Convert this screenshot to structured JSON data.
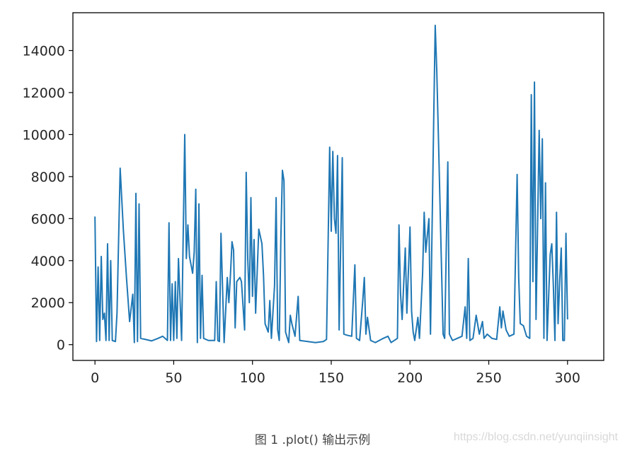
{
  "chart_data": {
    "type": "line",
    "title": "",
    "xlabel": "",
    "ylabel": "",
    "xlim": [
      -14,
      323
    ],
    "ylim": [
      -750,
      15800
    ],
    "x_ticks": [
      0,
      50,
      100,
      150,
      200,
      250,
      300
    ],
    "y_ticks": [
      0,
      2000,
      4000,
      6000,
      8000,
      10000,
      12000,
      14000
    ],
    "x_tick_labels": [
      "0",
      "50",
      "100",
      "150",
      "200",
      "250",
      "300"
    ],
    "y_tick_labels": [
      "0",
      "2000",
      "4000",
      "6000",
      "8000",
      "10000",
      "12000",
      "14000"
    ],
    "grid": false,
    "series": [
      {
        "color": "#1f77b4",
        "points": [
          [
            0,
            6100
          ],
          [
            1,
            150
          ],
          [
            2,
            3700
          ],
          [
            3,
            200
          ],
          [
            4,
            4200
          ],
          [
            5,
            1200
          ],
          [
            6,
            1500
          ],
          [
            7,
            200
          ],
          [
            8,
            4800
          ],
          [
            9,
            200
          ],
          [
            10,
            4000
          ],
          [
            11,
            200
          ],
          [
            13,
            150
          ],
          [
            14,
            1500
          ],
          [
            16,
            8400
          ],
          [
            18,
            5500
          ],
          [
            20,
            3200
          ],
          [
            22,
            1100
          ],
          [
            24,
            2400
          ],
          [
            25,
            100
          ],
          [
            26,
            7200
          ],
          [
            27,
            150
          ],
          [
            28,
            6700
          ],
          [
            29,
            300
          ],
          [
            32,
            250
          ],
          [
            36,
            180
          ],
          [
            40,
            300
          ],
          [
            43,
            400
          ],
          [
            46,
            200
          ],
          [
            47,
            5800
          ],
          [
            48,
            200
          ],
          [
            49,
            2900
          ],
          [
            50,
            200
          ],
          [
            51,
            3000
          ],
          [
            52,
            300
          ],
          [
            53,
            4100
          ],
          [
            55,
            200
          ],
          [
            57,
            10000
          ],
          [
            58,
            4100
          ],
          [
            59,
            5700
          ],
          [
            60,
            4200
          ],
          [
            62,
            3400
          ],
          [
            63,
            4400
          ],
          [
            64,
            7400
          ],
          [
            65,
            100
          ],
          [
            66,
            6700
          ],
          [
            67,
            300
          ],
          [
            68,
            3300
          ],
          [
            69,
            300
          ],
          [
            72,
            200
          ],
          [
            76,
            200
          ],
          [
            77,
            3000
          ],
          [
            78,
            200
          ],
          [
            79,
            150
          ],
          [
            80,
            5300
          ],
          [
            82,
            100
          ],
          [
            84,
            3200
          ],
          [
            85,
            2000
          ],
          [
            86,
            3300
          ],
          [
            87,
            4900
          ],
          [
            88,
            4500
          ],
          [
            89,
            800
          ],
          [
            90,
            3000
          ],
          [
            92,
            3200
          ],
          [
            93,
            3000
          ],
          [
            95,
            700
          ],
          [
            96,
            8200
          ],
          [
            97,
            4100
          ],
          [
            98,
            2000
          ],
          [
            99,
            7000
          ],
          [
            100,
            2300
          ],
          [
            101,
            5000
          ],
          [
            102,
            1500
          ],
          [
            104,
            5500
          ],
          [
            106,
            4800
          ],
          [
            107,
            3300
          ],
          [
            108,
            1000
          ],
          [
            110,
            600
          ],
          [
            111,
            2100
          ],
          [
            112,
            300
          ],
          [
            114,
            2800
          ],
          [
            115,
            7000
          ],
          [
            116,
            700
          ],
          [
            117,
            200
          ],
          [
            118,
            5000
          ],
          [
            119,
            8300
          ],
          [
            120,
            7800
          ],
          [
            121,
            600
          ],
          [
            123,
            100
          ],
          [
            124,
            1400
          ],
          [
            125,
            1000
          ],
          [
            127,
            400
          ],
          [
            129,
            2300
          ],
          [
            130,
            200
          ],
          [
            135,
            150
          ],
          [
            140,
            100
          ],
          [
            145,
            150
          ],
          [
            147,
            250
          ],
          [
            149,
            9400
          ],
          [
            150,
            5400
          ],
          [
            151,
            9200
          ],
          [
            152,
            6000
          ],
          [
            153,
            5300
          ],
          [
            154,
            9000
          ],
          [
            155,
            700
          ],
          [
            157,
            8900
          ],
          [
            158,
            500
          ],
          [
            160,
            450
          ],
          [
            163,
            400
          ],
          [
            165,
            3800
          ],
          [
            166,
            300
          ],
          [
            168,
            200
          ],
          [
            170,
            2100
          ],
          [
            171,
            3200
          ],
          [
            172,
            500
          ],
          [
            173,
            1300
          ],
          [
            175,
            200
          ],
          [
            178,
            100
          ],
          [
            183,
            300
          ],
          [
            186,
            400
          ],
          [
            188,
            100
          ],
          [
            192,
            300
          ],
          [
            193,
            5700
          ],
          [
            194,
            2400
          ],
          [
            195,
            1200
          ],
          [
            197,
            4600
          ],
          [
            198,
            1500
          ],
          [
            200,
            5600
          ],
          [
            201,
            1600
          ],
          [
            202,
            600
          ],
          [
            203,
            200
          ],
          [
            205,
            1300
          ],
          [
            206,
            300
          ],
          [
            208,
            3400
          ],
          [
            209,
            6300
          ],
          [
            210,
            4400
          ],
          [
            212,
            6000
          ],
          [
            213,
            500
          ],
          [
            215,
            10500
          ],
          [
            216,
            15200
          ],
          [
            217,
            13000
          ],
          [
            218,
            10000
          ],
          [
            221,
            500
          ],
          [
            222,
            300
          ],
          [
            224,
            8700
          ],
          [
            225,
            500
          ],
          [
            227,
            200
          ],
          [
            230,
            300
          ],
          [
            233,
            400
          ],
          [
            235,
            1800
          ],
          [
            236,
            300
          ],
          [
            237,
            4100
          ],
          [
            238,
            200
          ],
          [
            240,
            300
          ],
          [
            242,
            1400
          ],
          [
            244,
            500
          ],
          [
            246,
            1100
          ],
          [
            247,
            300
          ],
          [
            249,
            500
          ],
          [
            252,
            300
          ],
          [
            255,
            250
          ],
          [
            257,
            1800
          ],
          [
            258,
            800
          ],
          [
            259,
            1600
          ],
          [
            261,
            700
          ],
          [
            263,
            400
          ],
          [
            266,
            500
          ],
          [
            268,
            8100
          ],
          [
            269,
            3200
          ],
          [
            270,
            1000
          ],
          [
            272,
            900
          ],
          [
            274,
            400
          ],
          [
            276,
            300
          ],
          [
            277,
            11900
          ],
          [
            278,
            3000
          ],
          [
            279,
            12500
          ],
          [
            280,
            1200
          ],
          [
            282,
            10200
          ],
          [
            283,
            6000
          ],
          [
            284,
            9800
          ],
          [
            285,
            300
          ],
          [
            286,
            7700
          ],
          [
            287,
            200
          ],
          [
            289,
            4300
          ],
          [
            290,
            4800
          ],
          [
            291,
            2800
          ],
          [
            292,
            200
          ],
          [
            293,
            6300
          ],
          [
            294,
            1000
          ],
          [
            295,
            3000
          ],
          [
            296,
            4600
          ],
          [
            297,
            200
          ],
          [
            298,
            200
          ],
          [
            299,
            5300
          ],
          [
            300,
            1200
          ]
        ]
      }
    ]
  },
  "caption": "图 1 .plot() 输出示例",
  "watermark": "https://blog.csdn.net/yunqiinsight"
}
